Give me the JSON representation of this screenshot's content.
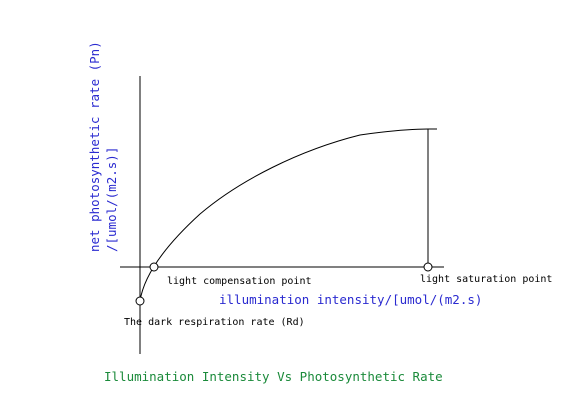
{
  "diagram": {
    "y_axis_label_line1": "net photosynthetic rate (Pn)",
    "y_axis_label_line2": "/[umol/(m2.s)]",
    "x_axis_label": "illumination intensity/[umol/(m2.s)",
    "point_light_compensation": "light compensation point",
    "point_light_saturation": "light saturation point",
    "point_dark_respiration": "The dark respiration rate (Rd)",
    "caption": "Illumination Intensity Vs Photosynthetic Rate"
  },
  "colors": {
    "axis_label": "#2a2ad0",
    "caption": "#1a8a3a",
    "lines": "#000000"
  }
}
